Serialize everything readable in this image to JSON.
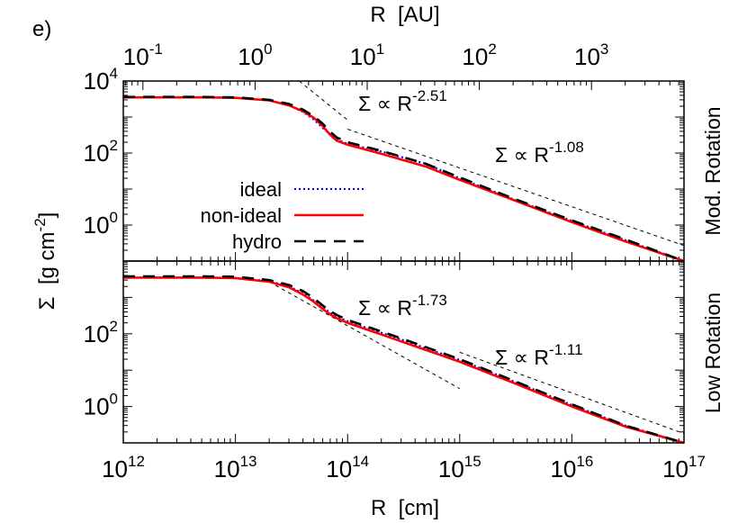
{
  "panel_label": "e)",
  "chart_data": [
    {
      "type": "line",
      "panel": "Mod. Rotation",
      "top_axis": {
        "label": "R  [AU]",
        "scale": "log",
        "ticks": [
          {
            "mant": "10",
            "exp": "-1",
            "au": 0.1
          },
          {
            "mant": "10",
            "exp": "0",
            "au": 1
          },
          {
            "mant": "10",
            "exp": "1",
            "au": 10
          },
          {
            "mant": "10",
            "exp": "2",
            "au": 100
          },
          {
            "mant": "10",
            "exp": "3",
            "au": 1000
          }
        ]
      },
      "x": {
        "scale": "log",
        "range": [
          1000000000000.0,
          1e+17
        ]
      },
      "y": {
        "scale": "log",
        "range": [
          0.1,
          10000
        ],
        "label_base": "Σ  [g cm",
        "label_exp": "-2",
        "label_close": "]"
      },
      "y_ticks": [
        {
          "mant": "10",
          "exp": "0",
          "val": 1
        },
        {
          "mant": "10",
          "exp": "2",
          "val": 100
        },
        {
          "mant": "10",
          "exp": "4",
          "val": 10000
        }
      ],
      "legend": {
        "position": "center-left",
        "entries": [
          "ideal",
          "non-ideal",
          "hydro"
        ]
      },
      "series": [
        {
          "name": "ideal",
          "color": "#0000ff",
          "style": "dotted",
          "x": [
            1000000000000.0,
            5000000000000.0,
            10000000000000.0,
            20000000000000.0,
            30000000000000.0,
            40000000000000.0,
            50000000000000.0,
            60000000000000.0,
            70000000000000.0,
            80000000000000.0,
            100000000000000.0,
            200000000000000.0,
            500000000000000.0,
            1000000000000000.0,
            3000000000000000.0,
            1e+16,
            3e+16,
            1e+17
          ],
          "y": [
            3500,
            3500,
            3400,
            2900,
            2100,
            1400,
            850,
            500,
            330,
            240,
            180,
            110,
            50,
            20,
            5.2,
            1.3,
            0.38,
            0.08
          ]
        },
        {
          "name": "non-ideal",
          "color": "#ff0000",
          "style": "solid",
          "x": [
            1000000000000.0,
            5000000000000.0,
            10000000000000.0,
            20000000000000.0,
            30000000000000.0,
            40000000000000.0,
            50000000000000.0,
            60000000000000.0,
            70000000000000.0,
            80000000000000.0,
            100000000000000.0,
            200000000000000.0,
            500000000000000.0,
            1000000000000000.0,
            3000000000000000.0,
            1e+16,
            3e+16,
            1e+17
          ],
          "y": [
            3500,
            3500,
            3400,
            2900,
            2100,
            1450,
            950,
            560,
            320,
            220,
            170,
            95,
            42,
            18,
            5,
            1.2,
            0.35,
            0.07
          ]
        },
        {
          "name": "hydro",
          "color": "#000000",
          "style": "dashed",
          "x": [
            1000000000000.0,
            5000000000000.0,
            10000000000000.0,
            20000000000000.0,
            30000000000000.0,
            40000000000000.0,
            50000000000000.0,
            60000000000000.0,
            70000000000000.0,
            80000000000000.0,
            100000000000000.0,
            200000000000000.0,
            500000000000000.0,
            1000000000000000.0,
            3000000000000000.0,
            1e+16,
            3e+16,
            1e+17
          ],
          "y": [
            3600,
            3600,
            3500,
            3000,
            2300,
            1600,
            1050,
            650,
            390,
            270,
            200,
            115,
            50,
            21,
            5.5,
            1.35,
            0.4,
            0.08
          ]
        }
      ],
      "reference_lines": [
        {
          "label_base": "Σ ∝ R",
          "label_exp": "-2.51",
          "x": [
            37000000000000.0,
            100000000000000.0
          ],
          "y": [
            10000,
            830
          ]
        },
        {
          "label_base": "Σ ∝ R",
          "label_exp": "-1.08",
          "x": [
            100000000000000.0,
            1e+17
          ],
          "y": [
            460,
            0.27
          ]
        }
      ]
    },
    {
      "type": "line",
      "panel": "Low Rotation",
      "x": {
        "scale": "log",
        "range": [
          1000000000000.0,
          1e+17
        ],
        "label": "R  [cm]"
      },
      "y": {
        "scale": "log",
        "range": [
          0.1,
          10000
        ]
      },
      "x_ticks": [
        {
          "mant": "10",
          "exp": "12",
          "val": 1000000000000.0
        },
        {
          "mant": "10",
          "exp": "13",
          "val": 10000000000000.0
        },
        {
          "mant": "10",
          "exp": "14",
          "val": 100000000000000.0
        },
        {
          "mant": "10",
          "exp": "15",
          "val": 1000000000000000.0
        },
        {
          "mant": "10",
          "exp": "16",
          "val": 1e+16
        },
        {
          "mant": "10",
          "exp": "17",
          "val": 1e+17
        }
      ],
      "y_ticks": [
        {
          "mant": "10",
          "exp": "0",
          "val": 1
        },
        {
          "mant": "10",
          "exp": "2",
          "val": 100
        }
      ],
      "series": [
        {
          "name": "ideal",
          "color": "#0000ff",
          "style": "dotted",
          "x": [
            1000000000000.0,
            5000000000000.0,
            10000000000000.0,
            20000000000000.0,
            30000000000000.0,
            40000000000000.0,
            50000000000000.0,
            60000000000000.0,
            70000000000000.0,
            80000000000000.0,
            100000000000000.0,
            300000000000000.0,
            1000000000000000.0,
            3000000000000000.0,
            1e+16,
            3e+16,
            1e+17
          ],
          "y": [
            3500,
            3500,
            3400,
            2800,
            2000,
            1300,
            820,
            530,
            380,
            300,
            220,
            70,
            19,
            5,
            1.1,
            0.3,
            0.07
          ]
        },
        {
          "name": "non-ideal",
          "color": "#ff0000",
          "style": "solid",
          "x": [
            1000000000000.0,
            5000000000000.0,
            10000000000000.0,
            20000000000000.0,
            30000000000000.0,
            40000000000000.0,
            50000000000000.0,
            60000000000000.0,
            70000000000000.0,
            80000000000000.0,
            100000000000000.0,
            300000000000000.0,
            1000000000000000.0,
            3000000000000000.0,
            1e+16,
            3e+16,
            1e+17
          ],
          "y": [
            3500,
            3500,
            3400,
            2700,
            1900,
            1200,
            760,
            480,
            340,
            270,
            200,
            62,
            17,
            4.5,
            1,
            0.28,
            0.065
          ]
        },
        {
          "name": "hydro",
          "color": "#000000",
          "style": "dashed",
          "x": [
            1000000000000.0,
            5000000000000.0,
            10000000000000.0,
            20000000000000.0,
            30000000000000.0,
            40000000000000.0,
            50000000000000.0,
            60000000000000.0,
            70000000000000.0,
            80000000000000.0,
            100000000000000.0,
            300000000000000.0,
            1000000000000000.0,
            3000000000000000.0,
            1e+16,
            3e+16,
            1e+17
          ],
          "y": [
            3800,
            3800,
            3700,
            3000,
            2200,
            1500,
            950,
            600,
            420,
            330,
            240,
            75,
            20,
            5.2,
            1.15,
            0.3,
            0.07
          ]
        }
      ],
      "reference_lines": [
        {
          "label_base": "Σ ∝ R",
          "label_exp": "-1.73",
          "x": [
            20000000000000.0,
            1000000000000000.0
          ],
          "y": [
            2700,
            3.1
          ]
        },
        {
          "label_base": "Σ ∝ R",
          "label_exp": "-1.11",
          "x": [
            1000000000000000.0,
            1e+17
          ],
          "y": [
            31,
            0.18
          ]
        }
      ]
    }
  ]
}
